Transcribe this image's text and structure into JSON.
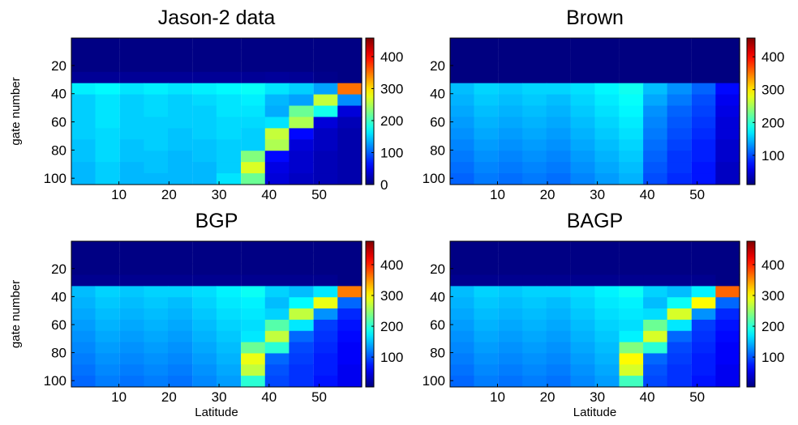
{
  "chart_data": [
    {
      "type": "heatmap",
      "title": "Jason-2 data",
      "ylabel": "gate number",
      "x": [
        2.9,
        7.7,
        12.6,
        17.4,
        22.2,
        27.1,
        31.9,
        36.8,
        41.6,
        46.4,
        51.3,
        56.1
      ],
      "y": [
        4.5,
        12.5,
        20.5,
        28.5,
        36.5,
        44.5,
        52.5,
        60.5,
        68.5,
        76.5,
        84.5,
        92.5,
        100.5
      ],
      "values": [
        [
          2,
          2,
          2,
          2,
          2,
          2,
          2,
          2,
          2,
          2,
          2,
          2
        ],
        [
          2,
          2,
          2,
          2,
          2,
          2,
          2,
          2,
          2,
          2,
          2,
          2
        ],
        [
          2,
          2,
          2,
          2,
          2,
          2,
          2,
          2,
          2,
          2,
          2,
          2
        ],
        [
          10,
          10,
          10,
          10,
          10,
          10,
          10,
          10,
          12,
          10,
          5,
          2
        ],
        [
          165,
          170,
          160,
          165,
          160,
          165,
          170,
          175,
          160,
          150,
          130,
          350
        ],
        [
          150,
          160,
          150,
          155,
          150,
          155,
          160,
          165,
          140,
          130,
          260,
          120
        ],
        [
          150,
          160,
          150,
          155,
          150,
          150,
          160,
          160,
          135,
          220,
          180,
          40
        ],
        [
          150,
          160,
          150,
          150,
          150,
          150,
          155,
          155,
          160,
          250,
          40,
          25
        ],
        [
          150,
          155,
          150,
          150,
          145,
          150,
          155,
          150,
          260,
          60,
          30,
          20
        ],
        [
          145,
          155,
          145,
          150,
          145,
          145,
          150,
          150,
          250,
          40,
          30,
          20
        ],
        [
          145,
          155,
          145,
          145,
          140,
          145,
          150,
          230,
          60,
          35,
          25,
          20
        ],
        [
          140,
          150,
          140,
          145,
          140,
          140,
          150,
          270,
          45,
          35,
          25,
          20
        ],
        [
          140,
          150,
          140,
          140,
          140,
          140,
          160,
          220,
          40,
          30,
          25,
          20
        ]
      ],
      "xlim": [
        0.5,
        58.5
      ],
      "ylim": [
        0.5,
        104.5
      ],
      "y_direction": "reversed",
      "xticks": [
        10,
        20,
        30,
        40,
        50
      ],
      "yticks": [
        20,
        40,
        60,
        80,
        100
      ],
      "clim": [
        0,
        458
      ],
      "cticks": [
        0,
        100,
        200,
        300,
        400
      ],
      "colormap": "jet"
    },
    {
      "type": "heatmap",
      "title": "Brown",
      "x": [
        2.9,
        7.7,
        12.6,
        17.4,
        22.2,
        27.1,
        31.9,
        36.8,
        41.6,
        46.4,
        51.3,
        56.1
      ],
      "y": [
        4.5,
        12.5,
        20.5,
        28.5,
        36.5,
        44.5,
        52.5,
        60.5,
        68.5,
        76.5,
        84.5,
        92.5,
        100.5
      ],
      "values": [
        [
          5,
          5,
          5,
          5,
          5,
          5,
          5,
          5,
          5,
          5,
          5,
          5
        ],
        [
          5,
          5,
          5,
          5,
          5,
          5,
          5,
          5,
          5,
          5,
          5,
          5
        ],
        [
          5,
          5,
          5,
          5,
          5,
          5,
          5,
          5,
          5,
          5,
          5,
          5
        ],
        [
          10,
          10,
          10,
          10,
          10,
          10,
          10,
          10,
          10,
          10,
          10,
          5
        ],
        [
          150,
          160,
          155,
          160,
          160,
          165,
          175,
          185,
          150,
          130,
          110,
          70
        ],
        [
          145,
          155,
          150,
          155,
          150,
          160,
          170,
          180,
          140,
          120,
          100,
          60
        ],
        [
          140,
          150,
          145,
          150,
          145,
          155,
          165,
          175,
          130,
          110,
          95,
          55
        ],
        [
          135,
          145,
          140,
          145,
          140,
          150,
          160,
          170,
          125,
          105,
          90,
          50
        ],
        [
          130,
          140,
          135,
          140,
          135,
          145,
          155,
          165,
          120,
          100,
          85,
          50
        ],
        [
          125,
          135,
          130,
          135,
          130,
          140,
          150,
          160,
          115,
          95,
          80,
          45
        ],
        [
          120,
          130,
          125,
          130,
          125,
          135,
          145,
          155,
          110,
          90,
          80,
          45
        ],
        [
          115,
          125,
          120,
          125,
          120,
          130,
          140,
          150,
          105,
          90,
          75,
          40
        ],
        [
          110,
          120,
          115,
          120,
          115,
          125,
          135,
          145,
          100,
          85,
          75,
          40
        ]
      ],
      "xlim": [
        0.5,
        58.5
      ],
      "ylim": [
        0.5,
        104.5
      ],
      "y_direction": "reversed",
      "xticks": [
        10,
        20,
        30,
        40,
        50
      ],
      "yticks": [
        20,
        40,
        60,
        80,
        100
      ],
      "clim": [
        11,
        457
      ],
      "cticks": [
        100,
        200,
        300,
        400
      ],
      "colormap": "jet"
    },
    {
      "type": "heatmap",
      "title": "BGP",
      "ylabel": "gate number",
      "xlabel": "Latitude",
      "x": [
        2.9,
        7.7,
        12.6,
        17.4,
        22.2,
        27.1,
        31.9,
        36.8,
        41.6,
        46.4,
        51.3,
        56.1
      ],
      "y": [
        4.5,
        12.5,
        20.5,
        28.5,
        36.5,
        44.5,
        52.5,
        60.5,
        68.5,
        76.5,
        84.5,
        92.5,
        100.5
      ],
      "values": [
        [
          5,
          5,
          5,
          5,
          5,
          5,
          5,
          5,
          5,
          5,
          5,
          5
        ],
        [
          5,
          5,
          5,
          5,
          5,
          5,
          5,
          5,
          5,
          5,
          5,
          5
        ],
        [
          5,
          5,
          5,
          5,
          5,
          5,
          5,
          5,
          5,
          5,
          5,
          5
        ],
        [
          10,
          10,
          10,
          10,
          10,
          10,
          10,
          10,
          10,
          10,
          10,
          5
        ],
        [
          150,
          160,
          155,
          160,
          160,
          165,
          175,
          185,
          160,
          150,
          170,
          360
        ],
        [
          145,
          155,
          150,
          155,
          150,
          160,
          170,
          175,
          150,
          180,
          290,
          110
        ],
        [
          140,
          150,
          145,
          150,
          145,
          155,
          165,
          170,
          160,
          270,
          130,
          80
        ],
        [
          135,
          145,
          140,
          145,
          140,
          150,
          160,
          165,
          220,
          170,
          90,
          70
        ],
        [
          130,
          140,
          135,
          140,
          135,
          145,
          155,
          170,
          270,
          110,
          85,
          65
        ],
        [
          125,
          135,
          130,
          135,
          130,
          140,
          150,
          230,
          200,
          95,
          80,
          60
        ],
        [
          120,
          130,
          125,
          130,
          125,
          135,
          145,
          290,
          110,
          90,
          75,
          60
        ],
        [
          115,
          125,
          120,
          125,
          120,
          130,
          140,
          270,
          100,
          85,
          75,
          55
        ],
        [
          110,
          120,
          115,
          120,
          115,
          125,
          135,
          200,
          95,
          85,
          70,
          55
        ]
      ],
      "xlim": [
        0.5,
        58.5
      ],
      "ylim": [
        0.5,
        104.5
      ],
      "y_direction": "reversed",
      "xticks": [
        10,
        20,
        30,
        40,
        50
      ],
      "yticks": [
        20,
        40,
        60,
        80,
        100
      ],
      "clim": [
        3,
        476
      ],
      "cticks": [
        100,
        200,
        300,
        400
      ],
      "colormap": "jet"
    },
    {
      "type": "heatmap",
      "title": "BAGP",
      "xlabel": "Latitude",
      "x": [
        2.9,
        7.7,
        12.6,
        17.4,
        22.2,
        27.1,
        31.9,
        36.8,
        41.6,
        46.4,
        51.3,
        56.1
      ],
      "y": [
        4.5,
        12.5,
        20.5,
        28.5,
        36.5,
        44.5,
        52.5,
        60.5,
        68.5,
        76.5,
        84.5,
        92.5,
        100.5
      ],
      "values": [
        [
          5,
          5,
          5,
          5,
          5,
          5,
          5,
          5,
          5,
          5,
          5,
          5
        ],
        [
          5,
          5,
          5,
          5,
          5,
          5,
          5,
          5,
          5,
          5,
          5,
          5
        ],
        [
          5,
          5,
          5,
          5,
          5,
          5,
          5,
          5,
          5,
          5,
          5,
          5
        ],
        [
          10,
          10,
          10,
          10,
          10,
          10,
          10,
          10,
          10,
          10,
          10,
          5
        ],
        [
          150,
          160,
          155,
          160,
          160,
          165,
          175,
          185,
          160,
          150,
          175,
          370
        ],
        [
          145,
          155,
          150,
          155,
          150,
          160,
          170,
          175,
          150,
          185,
          300,
          110
        ],
        [
          140,
          150,
          145,
          150,
          145,
          155,
          165,
          170,
          165,
          280,
          130,
          80
        ],
        [
          135,
          145,
          140,
          145,
          140,
          150,
          160,
          165,
          230,
          170,
          90,
          70
        ],
        [
          130,
          140,
          135,
          140,
          135,
          145,
          155,
          175,
          280,
          110,
          85,
          65
        ],
        [
          125,
          135,
          130,
          135,
          130,
          140,
          150,
          240,
          200,
          95,
          80,
          60
        ],
        [
          120,
          130,
          125,
          130,
          125,
          135,
          145,
          300,
          110,
          90,
          75,
          60
        ],
        [
          115,
          125,
          120,
          125,
          120,
          130,
          140,
          280,
          100,
          85,
          75,
          55
        ],
        [
          110,
          120,
          115,
          120,
          115,
          125,
          135,
          210,
          95,
          85,
          70,
          55
        ]
      ],
      "xlim": [
        0.5,
        58.5
      ],
      "ylim": [
        0.5,
        104.5
      ],
      "y_direction": "reversed",
      "xticks": [
        10,
        20,
        30,
        40,
        50
      ],
      "yticks": [
        20,
        40,
        60,
        80,
        100
      ],
      "clim": [
        3,
        476
      ],
      "cticks": [
        100,
        200,
        300,
        400
      ],
      "colormap": "jet"
    }
  ]
}
